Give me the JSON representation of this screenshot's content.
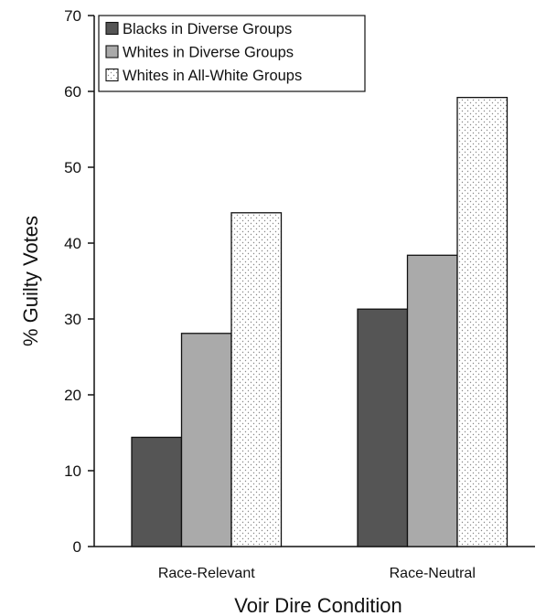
{
  "chart_data": {
    "type": "bar",
    "title": "",
    "xlabel": "Voir Dire Condition",
    "ylabel": "% Guilty Votes",
    "categories": [
      "Race-Relevant",
      "Race-Neutral"
    ],
    "series": [
      {
        "name": "Blacks in Diverse Groups",
        "values": [
          14.4,
          31.3
        ],
        "color": "#555555",
        "pattern": "solid"
      },
      {
        "name": "Whites in Diverse Groups",
        "values": [
          28.1,
          38.4
        ],
        "color": "#aaaaaa",
        "pattern": "solid"
      },
      {
        "name": "Whites in All-White Groups",
        "values": [
          44.0,
          59.2
        ],
        "color": "#ffffff",
        "pattern": "dots"
      }
    ],
    "ylim": [
      0,
      70
    ],
    "yticks": [
      0,
      10,
      20,
      30,
      40,
      50,
      60,
      70
    ],
    "grid": false,
    "legend_position": "top-left"
  }
}
